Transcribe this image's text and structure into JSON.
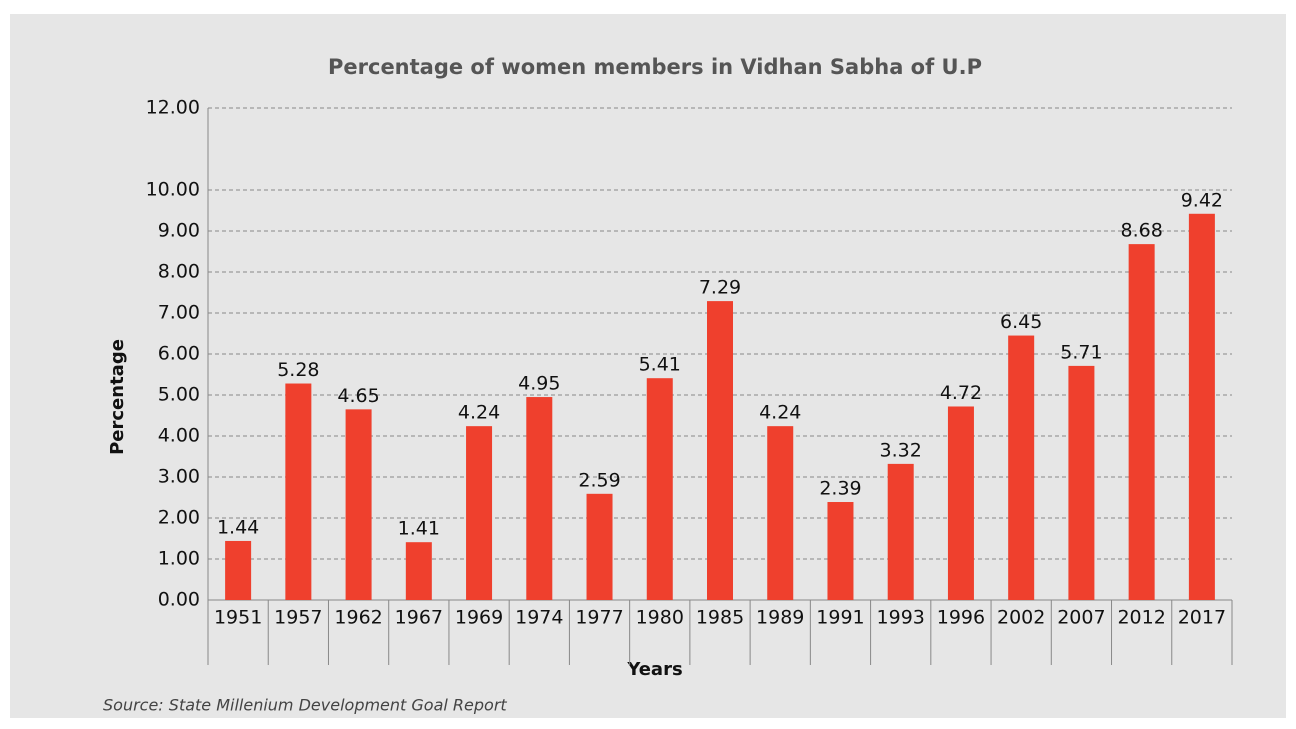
{
  "chart_data": {
    "type": "bar",
    "title": "Percentage of women members in Vidhan Sabha of U.P",
    "x_label": "Years",
    "y_label": "Percentage",
    "source": "Source: State Millenium Development Goal Report",
    "categories": [
      "1951",
      "1957",
      "1962",
      "1967",
      "1969",
      "1974",
      "1977",
      "1980",
      "1985",
      "1989",
      "1991",
      "1993",
      "1996",
      "2002",
      "2007",
      "2012",
      "2017"
    ],
    "values": [
      1.44,
      5.28,
      4.65,
      1.41,
      4.24,
      4.95,
      2.59,
      5.41,
      7.29,
      4.24,
      2.39,
      3.32,
      4.72,
      6.45,
      5.71,
      8.68,
      9.42
    ],
    "color": "#ef402d",
    "ylim": [
      0,
      12
    ],
    "yticks": [
      {
        "value": 0,
        "label": "0.00"
      },
      {
        "value": 1,
        "label": "1.00"
      },
      {
        "value": 2,
        "label": "2.00"
      },
      {
        "value": 3,
        "label": "3.00"
      },
      {
        "value": 4,
        "label": "4.00"
      },
      {
        "value": 5,
        "label": "5.00"
      },
      {
        "value": 6,
        "label": "6.00"
      },
      {
        "value": 7,
        "label": "7.00"
      },
      {
        "value": 8,
        "label": "8.00"
      },
      {
        "value": 9,
        "label": "9.00"
      },
      {
        "value": 10,
        "label": "10.00"
      },
      {
        "value": 12,
        "label": "12.00"
      }
    ],
    "grid": true
  }
}
